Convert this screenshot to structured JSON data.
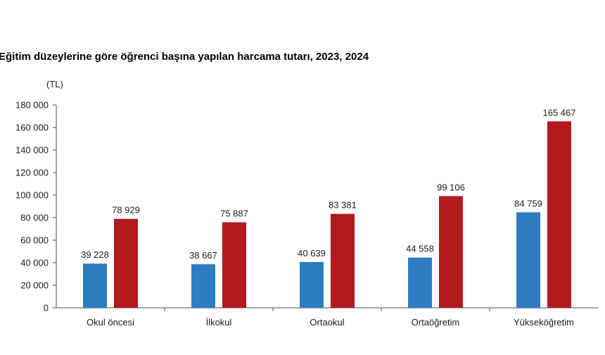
{
  "chart_data": {
    "type": "bar",
    "title": "Eğitim düzeylerine göre öğrenci başına yapılan harcama tutarı, 2023, 2024",
    "unit_label": "(TL)",
    "categories": [
      "Okul öncesi",
      "İlkokul",
      "Ortaokul",
      "Ortaöğretim",
      "Yükseköğretim"
    ],
    "series": [
      {
        "values": [
          39228,
          38667,
          40639,
          44558,
          84759
        ],
        "value_labels": [
          "39 228",
          "38 667",
          "40 639",
          "44 558",
          "84 759"
        ],
        "color": "#2e7dc2"
      },
      {
        "values": [
          78929,
          75887,
          83381,
          99106,
          165467
        ],
        "value_labels": [
          "78 929",
          "75 887",
          "83 381",
          "99 106",
          "165 467"
        ],
        "color": "#b11a1e"
      }
    ],
    "ylim": [
      0,
      180000
    ],
    "yticks": [
      0,
      20000,
      40000,
      60000,
      80000,
      100000,
      120000,
      140000,
      160000,
      180000
    ],
    "ytick_labels": [
      "0",
      "20 000",
      "40 000",
      "60 000",
      "80 000",
      "100 000",
      "120 000",
      "140 000",
      "160 000",
      "180 000"
    ],
    "grid": false,
    "legend": "none"
  }
}
